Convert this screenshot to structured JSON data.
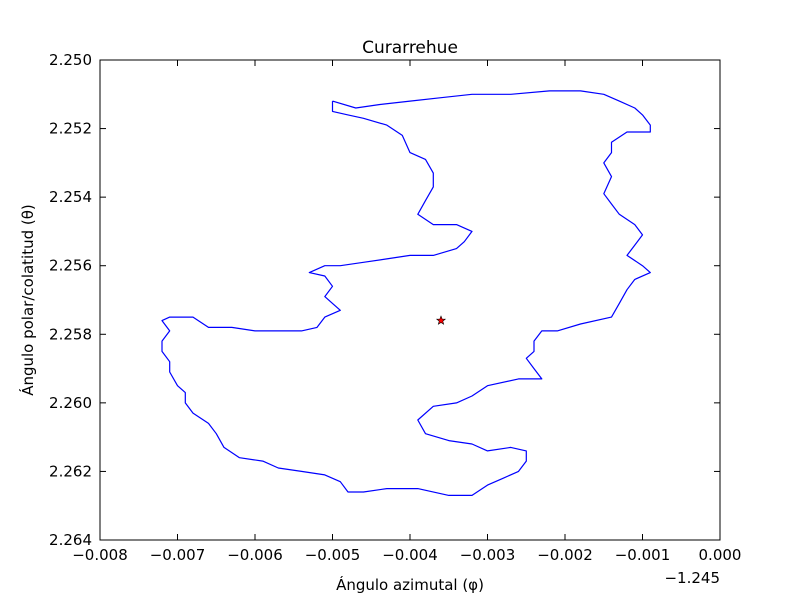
{
  "chart_data": {
    "type": "line",
    "title": "Curarrehue",
    "xlabel": "Ángulo azimutal (φ)",
    "ylabel": "Ángulo polar/colatitud (θ)",
    "x_offset_label": "−1.245",
    "xlim": [
      -0.008,
      0.0
    ],
    "ylim": [
      2.25,
      2.264
    ],
    "y_inverted": true,
    "xticks": [
      -0.008,
      -0.007,
      -0.006,
      -0.005,
      -0.004,
      -0.003,
      -0.002,
      -0.001,
      0.0
    ],
    "xtick_labels": [
      "−0.008",
      "−0.007",
      "−0.006",
      "−0.005",
      "−0.004",
      "−0.003",
      "−0.002",
      "−0.001",
      "0.000"
    ],
    "yticks": [
      2.25,
      2.252,
      2.254,
      2.256,
      2.258,
      2.26,
      2.262,
      2.264
    ],
    "ytick_labels": [
      "2.250",
      "2.252",
      "2.254",
      "2.256",
      "2.258",
      "2.260",
      "2.262",
      "2.264"
    ],
    "grid": false,
    "series": [
      {
        "color": "#0000ff",
        "points": [
          [
            -0.005,
            2.2512
          ],
          [
            -0.0047,
            2.2514
          ],
          [
            -0.0044,
            2.2513
          ],
          [
            -0.004,
            2.2512
          ],
          [
            -0.0036,
            2.2511
          ],
          [
            -0.0032,
            2.251
          ],
          [
            -0.0027,
            2.251
          ],
          [
            -0.0022,
            2.2509
          ],
          [
            -0.0018,
            2.2509
          ],
          [
            -0.0015,
            2.251
          ],
          [
            -0.0013,
            2.2512
          ],
          [
            -0.0011,
            2.2514
          ],
          [
            -0.001,
            2.2516
          ],
          [
            -0.0009,
            2.2519
          ],
          [
            -0.0009,
            2.2521
          ],
          [
            -0.0012,
            2.2521
          ],
          [
            -0.0014,
            2.2524
          ],
          [
            -0.0014,
            2.2527
          ],
          [
            -0.0015,
            2.253
          ],
          [
            -0.0014,
            2.2534
          ],
          [
            -0.0015,
            2.2539
          ],
          [
            -0.0014,
            2.2542
          ],
          [
            -0.0013,
            2.2545
          ],
          [
            -0.0011,
            2.2548
          ],
          [
            -0.001,
            2.2551
          ],
          [
            -0.0011,
            2.2554
          ],
          [
            -0.0012,
            2.2557
          ],
          [
            -0.001,
            2.256
          ],
          [
            -0.0009,
            2.2562
          ],
          [
            -0.0011,
            2.2564
          ],
          [
            -0.0012,
            2.2567
          ],
          [
            -0.0013,
            2.2571
          ],
          [
            -0.0014,
            2.2575
          ],
          [
            -0.0018,
            2.2577
          ],
          [
            -0.0021,
            2.2579
          ],
          [
            -0.0023,
            2.2579
          ],
          [
            -0.0024,
            2.2582
          ],
          [
            -0.0024,
            2.2585
          ],
          [
            -0.0025,
            2.2587
          ],
          [
            -0.0024,
            2.259
          ],
          [
            -0.0023,
            2.2593
          ],
          [
            -0.0026,
            2.2593
          ],
          [
            -0.003,
            2.2595
          ],
          [
            -0.0032,
            2.2598
          ],
          [
            -0.0034,
            2.26
          ],
          [
            -0.0037,
            2.2601
          ],
          [
            -0.0039,
            2.2605
          ],
          [
            -0.0038,
            2.2609
          ],
          [
            -0.0035,
            2.2611
          ],
          [
            -0.0032,
            2.2612
          ],
          [
            -0.003,
            2.2614
          ],
          [
            -0.0027,
            2.2613
          ],
          [
            -0.0025,
            2.2614
          ],
          [
            -0.0025,
            2.2617
          ],
          [
            -0.0026,
            2.262
          ],
          [
            -0.0028,
            2.2622
          ],
          [
            -0.003,
            2.2624
          ],
          [
            -0.0032,
            2.2627
          ],
          [
            -0.0035,
            2.2627
          ],
          [
            -0.0039,
            2.2625
          ],
          [
            -0.0043,
            2.2625
          ],
          [
            -0.0046,
            2.2626
          ],
          [
            -0.0048,
            2.2626
          ],
          [
            -0.0049,
            2.2623
          ],
          [
            -0.0051,
            2.2621
          ],
          [
            -0.0054,
            2.262
          ],
          [
            -0.0057,
            2.2619
          ],
          [
            -0.0059,
            2.2617
          ],
          [
            -0.0062,
            2.2616
          ],
          [
            -0.0064,
            2.2613
          ],
          [
            -0.0065,
            2.2609
          ],
          [
            -0.0066,
            2.2606
          ],
          [
            -0.0068,
            2.2603
          ],
          [
            -0.0069,
            2.26
          ],
          [
            -0.0069,
            2.2597
          ],
          [
            -0.007,
            2.2595
          ],
          [
            -0.0071,
            2.2591
          ],
          [
            -0.0071,
            2.2588
          ],
          [
            -0.0072,
            2.2585
          ],
          [
            -0.0072,
            2.2582
          ],
          [
            -0.0071,
            2.2579
          ],
          [
            -0.0072,
            2.2576
          ],
          [
            -0.0071,
            2.2575
          ],
          [
            -0.0068,
            2.2575
          ],
          [
            -0.0066,
            2.2578
          ],
          [
            -0.0063,
            2.2578
          ],
          [
            -0.006,
            2.2579
          ],
          [
            -0.0057,
            2.2579
          ],
          [
            -0.0054,
            2.2579
          ],
          [
            -0.0052,
            2.2578
          ],
          [
            -0.0051,
            2.2575
          ],
          [
            -0.0049,
            2.2573
          ],
          [
            -0.005,
            2.2571
          ],
          [
            -0.0051,
            2.2569
          ],
          [
            -0.005,
            2.2566
          ],
          [
            -0.0051,
            2.2563
          ],
          [
            -0.0053,
            2.2562
          ],
          [
            -0.0051,
            2.256
          ],
          [
            -0.0049,
            2.256
          ],
          [
            -0.0046,
            2.2559
          ],
          [
            -0.0043,
            2.2558
          ],
          [
            -0.004,
            2.2557
          ],
          [
            -0.0037,
            2.2557
          ],
          [
            -0.0034,
            2.2555
          ],
          [
            -0.0033,
            2.2553
          ],
          [
            -0.0032,
            2.255
          ],
          [
            -0.0034,
            2.2548
          ],
          [
            -0.0037,
            2.2548
          ],
          [
            -0.0039,
            2.2545
          ],
          [
            -0.0038,
            2.2541
          ],
          [
            -0.0037,
            2.2537
          ],
          [
            -0.0037,
            2.2533
          ],
          [
            -0.0038,
            2.2529
          ],
          [
            -0.004,
            2.2527
          ],
          [
            -0.0041,
            2.2522
          ],
          [
            -0.0043,
            2.2519
          ],
          [
            -0.0046,
            2.2517
          ],
          [
            -0.0048,
            2.2516
          ],
          [
            -0.005,
            2.2515
          ],
          [
            -0.005,
            2.2512
          ]
        ]
      }
    ],
    "marker": {
      "x": -0.0036,
      "y": 2.2576,
      "shape": "star",
      "color": "#ff0000"
    }
  }
}
